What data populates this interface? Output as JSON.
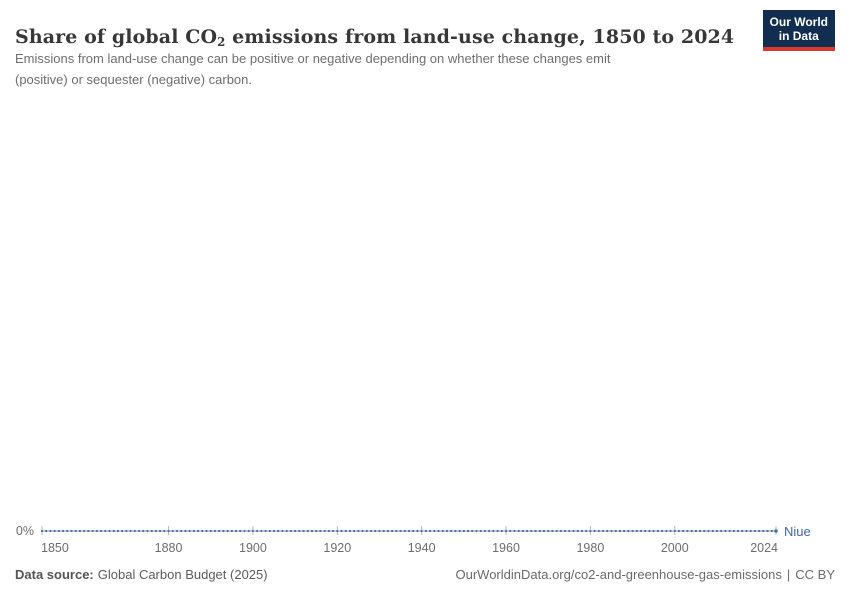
{
  "header": {
    "title_prefix": "Share of global CO",
    "title_subscript": "2",
    "title_suffix": " emissions from land-use change, 1850 to 2024",
    "subtitle": "Emissions from land-use change can be positive or negative depending on whether these changes emit (positive) or sequester (negative) carbon.",
    "logo": {
      "line1": "Our World",
      "line2": "in Data"
    }
  },
  "chart_data": {
    "type": "line",
    "title": "Share of global CO₂ emissions from land-use change, 1850 to 2024",
    "subtitle": "Emissions from land-use change can be positive or negative depending on whether these changes emit (positive) or sequester (negative) carbon.",
    "entity": "Niue",
    "x_range": [
      1850,
      2024
    ],
    "x_ticks": [
      1850,
      1880,
      1900,
      1920,
      1940,
      1960,
      1980,
      2000,
      2024
    ],
    "y_axis_tick_labels": [
      "0%"
    ],
    "grid": false,
    "legend_position": "line-end-label",
    "marker_style": "dot-per-year",
    "series": [
      {
        "name": "Niue",
        "color": "#4c6ea9",
        "line_color": "#8099c2",
        "frequency": "annual",
        "years_start": 1850,
        "years_end": 2024,
        "constant_value_percent": 0,
        "note": "every annual point from 1850 through 2024 equals 0%"
      }
    ],
    "axis_colors": {
      "tick_mark": "#b4b8bf",
      "tick_label": "#6d6d6d"
    }
  },
  "footer": {
    "source_label": "Data source:",
    "source_value": "Global Carbon Budget (2025)",
    "link": "OurWorldinData.org/co2-and-greenhouse-gas-emissions",
    "divider": "|",
    "license": "CC BY"
  }
}
